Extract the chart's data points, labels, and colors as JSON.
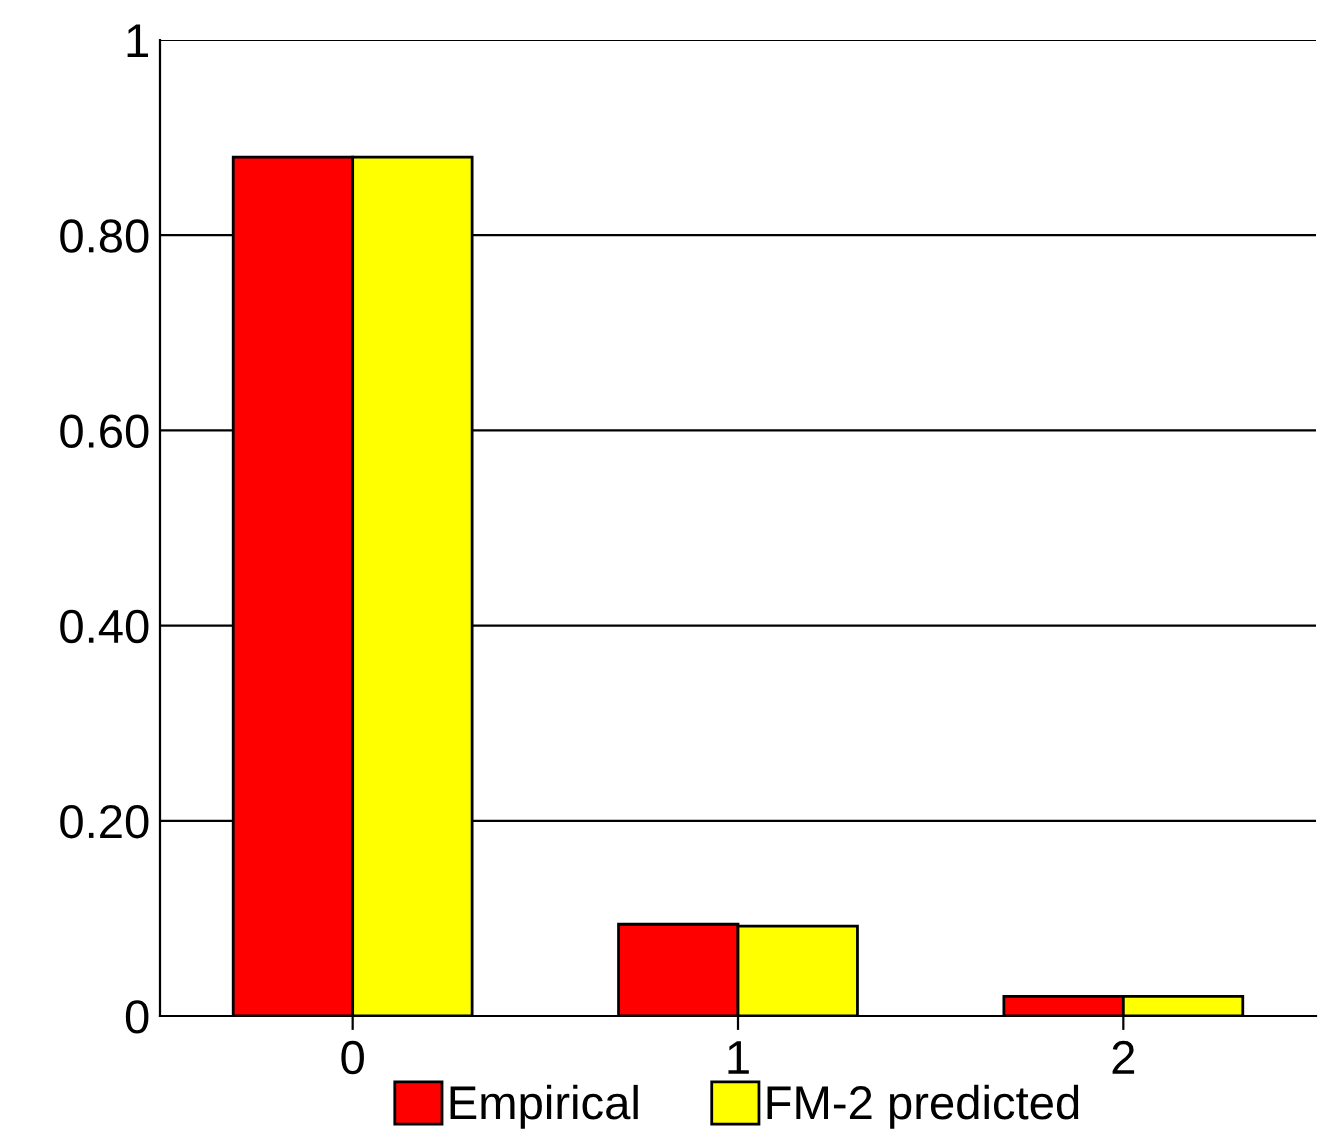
{
  "chart_data": {
    "type": "bar",
    "categories": [
      "0",
      "1",
      "2"
    ],
    "series": [
      {
        "name": "Empirical",
        "color": "#ff0000",
        "values": [
          0.88,
          0.094,
          0.02
        ]
      },
      {
        "name": "FM-2 predicted",
        "color": "#ffff00",
        "values": [
          0.88,
          0.092,
          0.02
        ]
      }
    ],
    "ylim": [
      0,
      1
    ],
    "yticks": [
      {
        "value": 0,
        "label": "0"
      },
      {
        "value": 0.2,
        "label": "0.20"
      },
      {
        "value": 0.4,
        "label": "0.40"
      },
      {
        "value": 0.6,
        "label": "0.60"
      },
      {
        "value": 0.8,
        "label": "0.80"
      },
      {
        "value": 1,
        "label": "1"
      }
    ],
    "grid": "y",
    "legend": "bottom"
  }
}
